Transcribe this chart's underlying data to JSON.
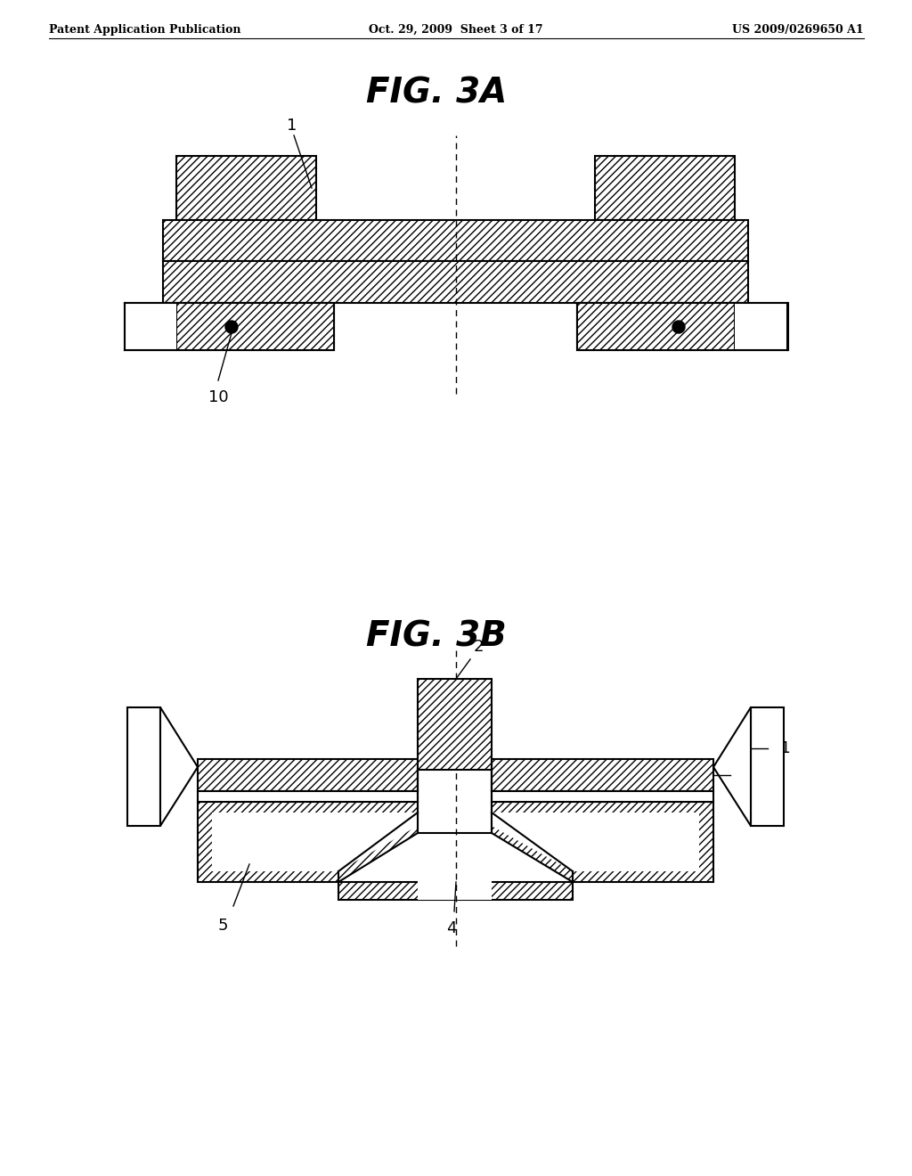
{
  "bg_color": "#ffffff",
  "header_left": "Patent Application Publication",
  "header_mid": "Oct. 29, 2009  Sheet 3 of 17",
  "header_right": "US 2009/0269650 A1",
  "fig3a_title": "FIG. 3A",
  "fig3b_title": "FIG. 3B",
  "hatch_pattern": "////",
  "line_color": "#000000"
}
